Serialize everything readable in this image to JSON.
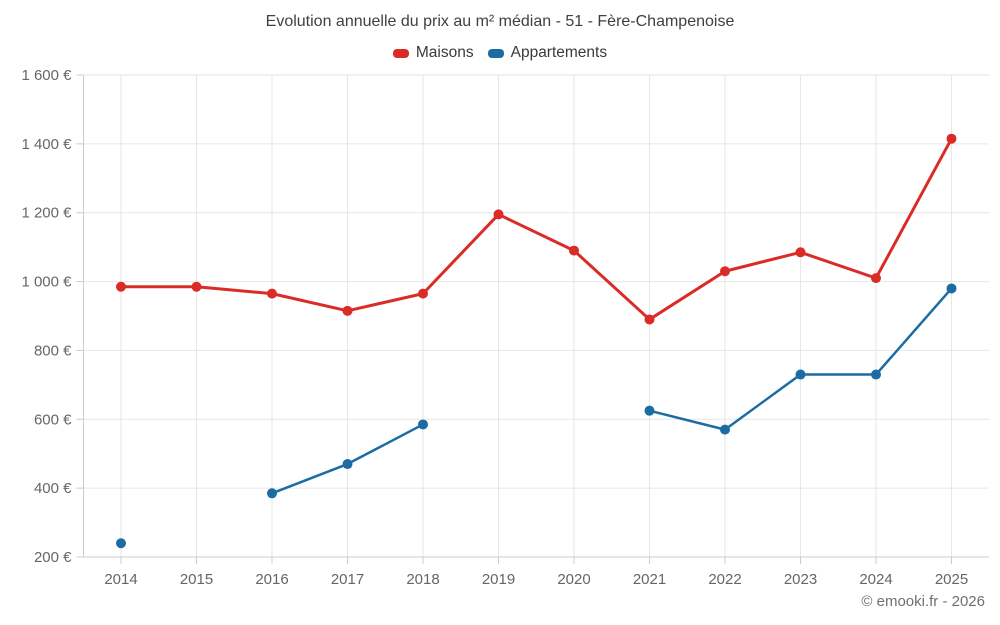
{
  "chart_data": {
    "type": "line",
    "title": "Evolution annuelle du prix au m² médian - 51 - Fère-Champenoise",
    "categories": [
      "2014",
      "2015",
      "2016",
      "2017",
      "2018",
      "2019",
      "2020",
      "2021",
      "2022",
      "2023",
      "2024",
      "2025"
    ],
    "series": [
      {
        "name": "Maisons",
        "color": "#db2b27",
        "values": [
          985,
          985,
          965,
          915,
          965,
          1195,
          1090,
          890,
          1030,
          1085,
          1010,
          1415
        ]
      },
      {
        "name": "Appartements",
        "color": "#1b6ca3",
        "values": [
          240,
          null,
          385,
          470,
          585,
          null,
          null,
          625,
          570,
          730,
          730,
          980
        ]
      }
    ],
    "y_axis": {
      "min": 200,
      "max": 1600,
      "tick_values": [
        200,
        400,
        600,
        800,
        1000,
        1200,
        1400,
        1600
      ],
      "tick_labels": [
        "200 €",
        "400 €",
        "600 €",
        "800 €",
        "1 000 €",
        "1 200 €",
        "1 400 €",
        "1 600 €"
      ],
      "unit": "€"
    },
    "grid": true,
    "legend_position": "top"
  },
  "colors": {
    "grid": "#e6e6e6",
    "axis": "#cccccc",
    "tick_text": "#666666"
  },
  "footer": {
    "copyright": "© emooki.fr - 2026"
  }
}
